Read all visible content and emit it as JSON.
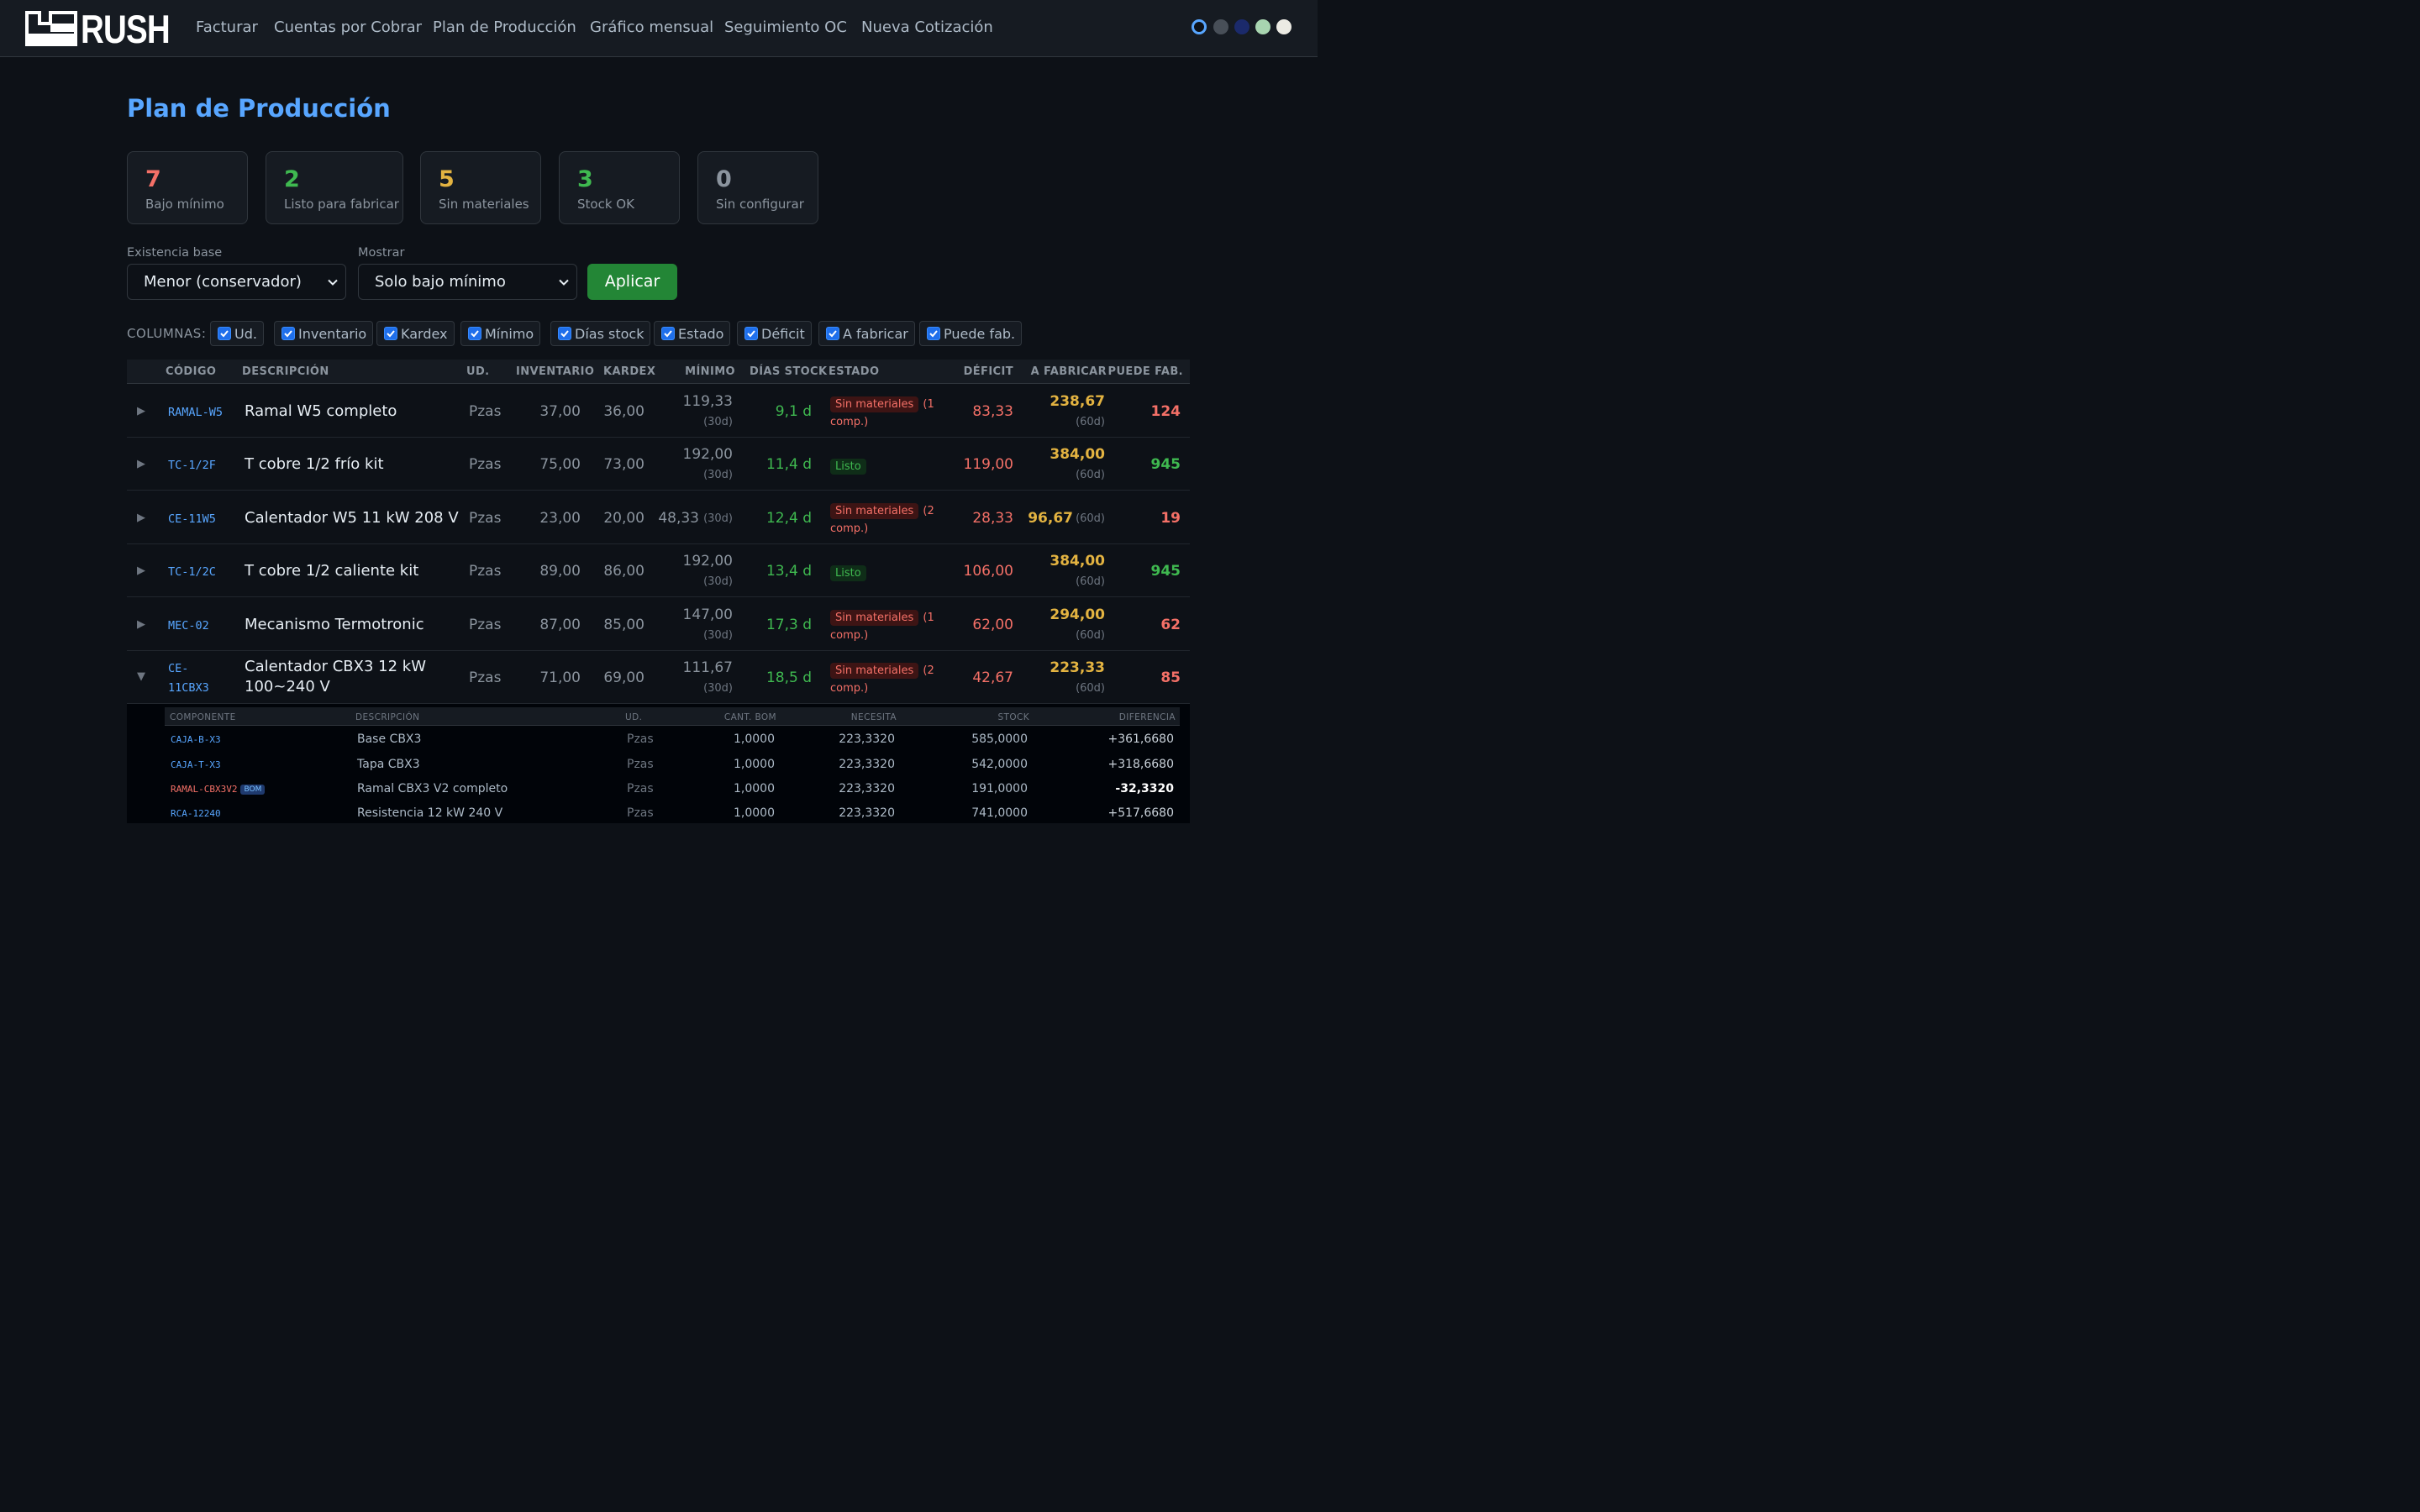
{
  "app": {
    "logo_text": "RUSH",
    "nav": [
      {
        "label": "Facturar"
      },
      {
        "label": "Cuentas por Cobrar"
      },
      {
        "label": "Plan de Producción"
      },
      {
        "label": "Gráfico mensual"
      },
      {
        "label": "Seguimiento OC"
      },
      {
        "label": "Nueva Cotización"
      }
    ],
    "theme_dots": [
      {
        "color": "#0d1117",
        "ring": "#58a6ff"
      },
      {
        "color": "#484f58"
      },
      {
        "color": "#1b2a6b"
      },
      {
        "color": "#a8d5b0"
      },
      {
        "color": "#ecebe4"
      }
    ]
  },
  "page": {
    "title": "Plan de Producción"
  },
  "summary": [
    {
      "value": "7",
      "label": "Bajo mínimo",
      "color": "#f47067"
    },
    {
      "value": "2",
      "label": "Listo para fabricar",
      "color": "#3fb950"
    },
    {
      "value": "5",
      "label": "Sin materiales",
      "color": "#e3b341"
    },
    {
      "value": "3",
      "label": "Stock OK",
      "color": "#3fb950"
    },
    {
      "value": "0",
      "label": "Sin configurar",
      "color": "#8b949e"
    }
  ],
  "filters": {
    "existencia_label": "Existencia base",
    "existencia_value": "Menor (conservador)",
    "mostrar_label": "Mostrar",
    "mostrar_value": "Solo bajo mínimo",
    "apply_label": "Aplicar"
  },
  "columns": {
    "label": "COLUMNAS:",
    "toggles": [
      {
        "label": "Ud.",
        "checked": true
      },
      {
        "label": "Inventario",
        "checked": true
      },
      {
        "label": "Kardex",
        "checked": true
      },
      {
        "label": "Mínimo",
        "checked": true
      },
      {
        "label": "Días stock",
        "checked": true
      },
      {
        "label": "Estado",
        "checked": true
      },
      {
        "label": "Déficit",
        "checked": true
      },
      {
        "label": "A fabricar",
        "checked": true
      },
      {
        "label": "Puede fab.",
        "checked": true
      }
    ]
  },
  "table": {
    "headers": {
      "codigo": "CÓDIGO",
      "descripcion": "DESCRIPCIÓN",
      "ud": "UD.",
      "inventario": "INVENTARIO",
      "kardex": "KARDEX",
      "minimo": "MÍNIMO",
      "dias": "DÍAS STOCK",
      "estado": "ESTADO",
      "deficit": "DÉFICIT",
      "fabricar": "A FABRICAR",
      "puede": "PUEDE FAB."
    },
    "rows": [
      {
        "arrow": "▶",
        "code": "RAMAL-W5",
        "desc": "Ramal W5 completo",
        "ud": "Pzas",
        "inventario": "37,00",
        "kardex": "36,00",
        "minimo": "119,33",
        "minimo_sub": "(30d)",
        "dias": "9,1 d",
        "estado": "Sin materiales",
        "estado_extra": "(1",
        "estado_extra2": "comp.)",
        "deficit": "83,33",
        "fabricar": "238,67",
        "fabricar_sub": "(60d)",
        "puede": "124",
        "puede_color": "#f47067"
      },
      {
        "arrow": "▶",
        "code": "TC-1/2F",
        "desc": "T cobre 1/2 frío kit",
        "ud": "Pzas",
        "inventario": "75,00",
        "kardex": "73,00",
        "minimo": "192,00",
        "minimo_sub": "(30d)",
        "dias": "11,4 d",
        "estado": "Listo",
        "deficit": "119,00",
        "fabricar": "384,00",
        "fabricar_sub": "(60d)",
        "puede": "945",
        "puede_color": "#3fb950"
      },
      {
        "arrow": "▶",
        "code": "CE-11W5",
        "desc": "Calentador W5 11 kW 208 V",
        "ud": "Pzas",
        "inventario": "23,00",
        "kardex": "20,00",
        "minimo": "48,33",
        "minimo_sub": "(30d)",
        "dias": "12,4 d",
        "estado": "Sin materiales",
        "estado_extra": "(2",
        "estado_extra2": "comp.)",
        "deficit": "28,33",
        "fabricar": "96,67",
        "fabricar_sub": "(60d)",
        "puede": "19",
        "puede_color": "#f47067"
      },
      {
        "arrow": "▶",
        "code": "TC-1/2C",
        "desc": "T cobre 1/2 caliente kit",
        "ud": "Pzas",
        "inventario": "89,00",
        "kardex": "86,00",
        "minimo": "192,00",
        "minimo_sub": "(30d)",
        "dias": "13,4 d",
        "estado": "Listo",
        "deficit": "106,00",
        "fabricar": "384,00",
        "fabricar_sub": "(60d)",
        "puede": "945",
        "puede_color": "#3fb950"
      },
      {
        "arrow": "▶",
        "code": "MEC-02",
        "desc": "Mecanismo Termotronic",
        "ud": "Pzas",
        "inventario": "87,00",
        "kardex": "85,00",
        "minimo": "147,00",
        "minimo_sub": "(30d)",
        "dias": "17,3 d",
        "estado": "Sin materiales",
        "estado_extra": "(1",
        "estado_extra2": "comp.)",
        "deficit": "62,00",
        "fabricar": "294,00",
        "fabricar_sub": "(60d)",
        "puede": "62",
        "puede_color": "#f47067"
      },
      {
        "arrow": "▼",
        "code": "CE-",
        "code2": "11CBX3",
        "desc": "Calentador CBX3 12 kW",
        "desc2": "100~240 V",
        "ud": "Pzas",
        "inventario": "71,00",
        "kardex": "69,00",
        "minimo": "111,67",
        "minimo_sub": "(30d)",
        "dias": "18,5 d",
        "estado": "Sin materiales",
        "estado_extra": "(2",
        "estado_extra2": "comp.)",
        "deficit": "42,67",
        "fabricar": "223,33",
        "fabricar_sub": "(60d)",
        "puede": "85",
        "puede_color": "#f47067"
      }
    ]
  },
  "components": {
    "headers": {
      "componente": "COMPONENTE",
      "descripcion": "DESCRIPCIÓN",
      "ud": "UD.",
      "cant": "CANT. BOM",
      "necesita": "NECESITA",
      "stock": "STOCK",
      "diferencia": "DIFERENCIA"
    },
    "rows": [
      {
        "code": "CAJA-B-X3",
        "code_color": "#58a6ff",
        "desc": "Base CBX3",
        "ud": "Pzas",
        "cant": "1,0000",
        "necesita": "223,3320",
        "stock": "585,0000",
        "diferencia": "+361,6680",
        "diff_color": "#c9d1d9"
      },
      {
        "code": "CAJA-T-X3",
        "code_color": "#58a6ff",
        "desc": "Tapa CBX3",
        "ud": "Pzas",
        "cant": "1,0000",
        "necesita": "223,3320",
        "stock": "542,0000",
        "diferencia": "+318,6680",
        "diff_color": "#c9d1d9"
      },
      {
        "code": "RAMAL-CBX3V2",
        "code_color": "#f47067",
        "bom": "BOM",
        "desc": "Ramal CBX3 V2 completo",
        "ud": "Pzas",
        "cant": "1,0000",
        "necesita": "223,3320",
        "stock": "191,0000",
        "diferencia": "-32,3320",
        "diff_color": "#ffffff"
      },
      {
        "code": "RCA-12240",
        "code_color": "#58a6ff",
        "desc": "Resistencia 12 kW 240 V",
        "ud": "Pzas",
        "cant": "1,0000",
        "necesita": "223,3320",
        "stock": "741,0000",
        "diferencia": "+517,6680",
        "diff_color": "#c9d1d9"
      }
    ]
  }
}
